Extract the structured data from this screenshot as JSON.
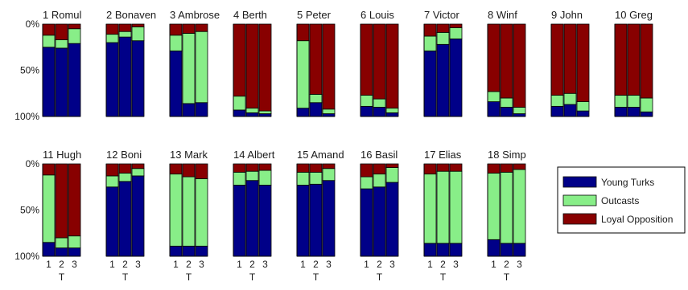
{
  "chart_data": {
    "type": "bar",
    "stacked": true,
    "normalized": true,
    "categories": [
      "1",
      "2",
      "3"
    ],
    "xlabel": "T",
    "yticks": [
      "0%",
      "50%",
      "100%"
    ],
    "ylim": [
      0,
      1
    ],
    "legend": {
      "placement": "right",
      "entries": [
        {
          "name": "Young Turks",
          "color": "#000088"
        },
        {
          "name": "Outcasts",
          "color": "#88ee88"
        },
        {
          "name": "Loyal Opposition",
          "color": "#880000"
        }
      ]
    },
    "series_order": [
      "Young Turks",
      "Outcasts",
      "Loyal Opposition"
    ],
    "panels": [
      {
        "title": "1 Romul",
        "young_turks": [
          0.75,
          0.74,
          0.79
        ],
        "outcasts": [
          0.13,
          0.09,
          0.16
        ]
      },
      {
        "title": "2 Bonaven",
        "young_turks": [
          0.8,
          0.86,
          0.82
        ],
        "outcasts": [
          0.09,
          0.06,
          0.15
        ]
      },
      {
        "title": "3 Ambrose",
        "young_turks": [
          0.71,
          0.14,
          0.15
        ],
        "outcasts": [
          0.17,
          0.76,
          0.77
        ]
      },
      {
        "title": "4 Berth",
        "young_turks": [
          0.07,
          0.04,
          0.03
        ],
        "outcasts": [
          0.15,
          0.05,
          0.03
        ]
      },
      {
        "title": "5 Peter",
        "young_turks": [
          0.09,
          0.15,
          0.03
        ],
        "outcasts": [
          0.73,
          0.09,
          0.05
        ]
      },
      {
        "title": "6 Louis",
        "young_turks": [
          0.11,
          0.1,
          0.04
        ],
        "outcasts": [
          0.12,
          0.09,
          0.05
        ]
      },
      {
        "title": "7 Victor",
        "young_turks": [
          0.71,
          0.78,
          0.84
        ],
        "outcasts": [
          0.16,
          0.13,
          0.12
        ]
      },
      {
        "title": "8 Winf",
        "young_turks": [
          0.16,
          0.1,
          0.03
        ],
        "outcasts": [
          0.11,
          0.1,
          0.07
        ]
      },
      {
        "title": "9 John",
        "young_turks": [
          0.11,
          0.13,
          0.06
        ],
        "outcasts": [
          0.12,
          0.12,
          0.1
        ]
      },
      {
        "title": "10 Greg",
        "young_turks": [
          0.1,
          0.1,
          0.05
        ],
        "outcasts": [
          0.13,
          0.13,
          0.15
        ]
      },
      {
        "title": "11 Hugh",
        "young_turks": [
          0.15,
          0.09,
          0.09
        ],
        "outcasts": [
          0.73,
          0.11,
          0.13
        ]
      },
      {
        "title": "12 Boni",
        "young_turks": [
          0.75,
          0.81,
          0.87
        ],
        "outcasts": [
          0.12,
          0.09,
          0.08
        ]
      },
      {
        "title": "13 Mark",
        "young_turks": [
          0.11,
          0.11,
          0.11
        ],
        "outcasts": [
          0.78,
          0.75,
          0.73
        ]
      },
      {
        "title": "14 Albert",
        "young_turks": [
          0.77,
          0.82,
          0.77
        ],
        "outcasts": [
          0.14,
          0.1,
          0.16
        ]
      },
      {
        "title": "15 Amand",
        "young_turks": [
          0.77,
          0.78,
          0.82
        ],
        "outcasts": [
          0.14,
          0.13,
          0.13
        ]
      },
      {
        "title": "16 Basil",
        "young_turks": [
          0.73,
          0.75,
          0.8
        ],
        "outcasts": [
          0.13,
          0.14,
          0.16
        ]
      },
      {
        "title": "17 Elias",
        "young_turks": [
          0.14,
          0.14,
          0.14
        ],
        "outcasts": [
          0.75,
          0.78,
          0.78
        ]
      },
      {
        "title": "18 Simp",
        "young_turks": [
          0.18,
          0.14,
          0.14
        ],
        "outcasts": [
          0.72,
          0.77,
          0.8
        ]
      }
    ]
  }
}
